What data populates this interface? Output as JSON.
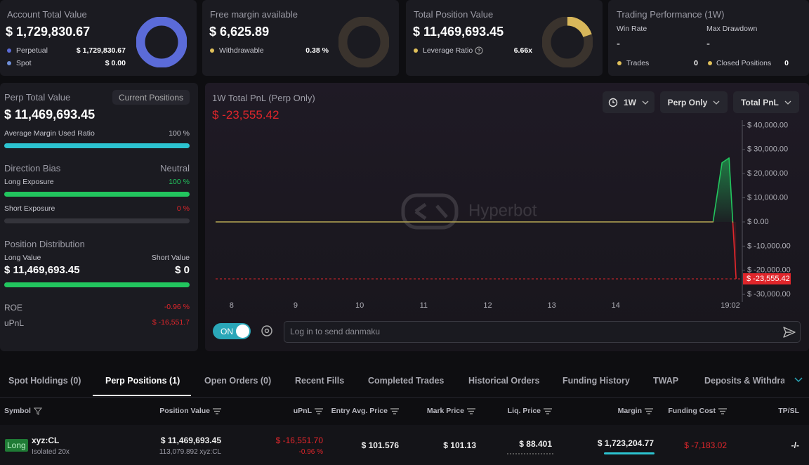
{
  "account_cards": [
    {
      "title": "Account Total Value",
      "value": "$ 1,729,830.67",
      "items": [
        {
          "label": "Perpetual",
          "value": "$ 1,729,830.67"
        },
        {
          "label": "Spot",
          "value": "$ 0.00"
        }
      ]
    },
    {
      "title": "Free margin available",
      "value": "$ 6,625.89",
      "items": [
        {
          "label": "Withdrawable",
          "value": "0.38 %"
        }
      ]
    },
    {
      "title": "Total Position Value",
      "value": "$ 11,469,693.45",
      "items": [
        {
          "label": "Leverage Ratio",
          "value": "6.66x"
        }
      ]
    }
  ],
  "performance": {
    "title": "Trading Performance (1W)",
    "stats": [
      {
        "label": "Win Rate",
        "value": "-"
      },
      {
        "label": "Max Drawdown",
        "value": "-"
      }
    ],
    "counts": [
      {
        "label": "Trades",
        "value": "0"
      },
      {
        "label": "Closed Positions",
        "value": "0"
      }
    ]
  },
  "perp_panel": {
    "title": "Perp Total Value",
    "button": "Current Positions",
    "value": "$ 11,469,693.45",
    "margin_label": "Average Margin Used Ratio",
    "margin_value": "100 %",
    "bias_label": "Direction Bias",
    "bias_value": "Neutral",
    "long_label": "Long Exposure",
    "long_value": "100 %",
    "short_label": "Short Exposure",
    "short_value": "0 %",
    "distribution_title": "Position Distribution",
    "long_value_label": "Long Value",
    "short_value_label": "Short Value",
    "long_amount": "$ 11,469,693.45",
    "short_amount": "$ 0",
    "roe_label": "ROE",
    "roe": "-0.96 %",
    "upnl_label": "uPnL",
    "upnl": "$ -16,551.7"
  },
  "chart_controls": {
    "period": "1W",
    "scope": "Perp Only",
    "metric": "Total PnL",
    "toggle": "ON",
    "input_placeholder": "Log in to send danmaku"
  },
  "chart_data": {
    "type": "area",
    "title": "1W Total PnL (Perp Only)",
    "watermark": "Hyperbot",
    "x": [
      7.75,
      15.52,
      15.66,
      15.77,
      15.88
    ],
    "values": [
      0,
      0,
      24500,
      26500,
      -23555.42
    ],
    "current_value": -23555.42,
    "current_value_label": "$ -23,555.42",
    "xlim": [
      7.75,
      15.9
    ],
    "xticks": [
      8,
      9,
      10,
      11,
      12,
      13,
      14,
      {
        "value": 15.79,
        "label": "19:02"
      }
    ],
    "ylim": [
      -32000,
      41000
    ],
    "yticks": [
      {
        "value": 40000,
        "label": "$ 40,000.00"
      },
      {
        "value": 30000,
        "label": "$ 30,000.00"
      },
      {
        "value": 20000,
        "label": "$ 20,000.00"
      },
      {
        "value": 10000,
        "label": "$ 10,000.00"
      },
      {
        "value": 0,
        "label": "$ 0.00"
      },
      {
        "value": -10000,
        "label": "$ -10,000.00"
      },
      {
        "value": -20000,
        "label": "$ -20,000.00"
      },
      {
        "value": -30000,
        "label": "$ -30,000.00"
      }
    ],
    "colors": {
      "up": "#22c55e",
      "down": "#e0262b",
      "flat": "#a89a4f"
    }
  },
  "tabs": {
    "items": [
      "Spot Holdings (0)",
      "Perp Positions (1)",
      "Open Orders (0)",
      "Recent Fills",
      "Completed Trades",
      "Historical Orders",
      "Funding History",
      "TWAP",
      "Deposits & Withdraw"
    ],
    "active": 1
  },
  "positions_table": {
    "columns": [
      "Symbol",
      "Position Value",
      "uPnL",
      "Entry Avg. Price",
      "Mark Price",
      "Liq. Price",
      "Margin",
      "Funding Cost",
      "TP/SL"
    ],
    "rows": [
      {
        "side": "Long",
        "symbol": "xyz:CL",
        "mode": "Isolated 20x",
        "position_value": "$ 11,469,693.45",
        "size": "113,079.892 xyz:CL",
        "upnl": "$ -16,551.70",
        "upnl_pct": "-0.96 %",
        "entry_price": "$ 101.576",
        "mark_price": "$ 101.13",
        "liq_price": "$ 88.401",
        "margin": "$ 1,723,204.77",
        "funding_cost": "$ -7,183.02",
        "tp_sl": "-/-"
      }
    ]
  }
}
